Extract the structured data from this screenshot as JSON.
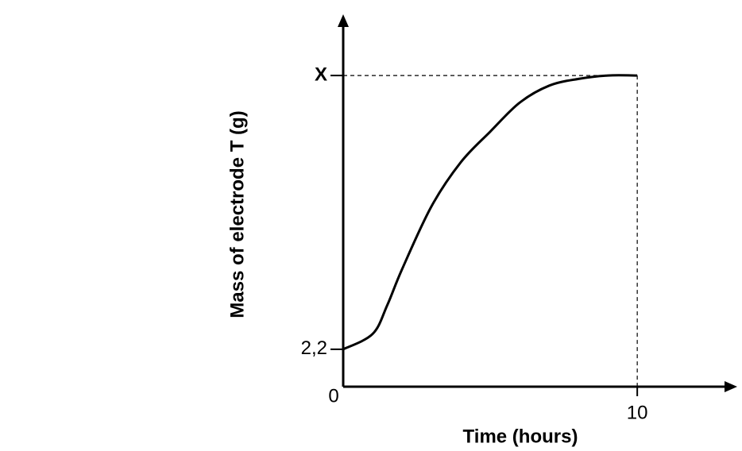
{
  "chart_data": {
    "type": "line",
    "x_label": "Time (hours)",
    "y_label": "Mass of electrode T (g)",
    "x": [
      0,
      1,
      1.5,
      2,
      3,
      4,
      5,
      6,
      7,
      8,
      9,
      10
    ],
    "series": [
      {
        "color": "#000000",
        "values": [
          2.2,
          3.1,
          4.8,
          6.9,
          10.6,
          13.2,
          15.0,
          16.7,
          17.7,
          18.1,
          18.3,
          18.3
        ]
      }
    ],
    "xlim": [
      0,
      13.4
    ],
    "ylim": [
      0,
      21.9
    ],
    "xticks": [
      0,
      10
    ],
    "yticks": [
      {
        "value": 2.2,
        "label": "2,2"
      },
      {
        "value": 18.3,
        "label": "X"
      }
    ],
    "grid": false
  }
}
